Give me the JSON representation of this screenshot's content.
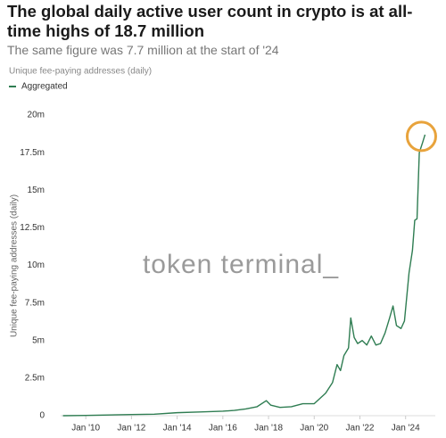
{
  "chart_data": {
    "type": "line",
    "title": "The global daily active user count in crypto is at all-time highs of 18.7 million",
    "subtitle": "The same figure was 7.7 million at the start of '24",
    "caption": "Unique fee-paying addresses (daily)",
    "y_label": "Unique fee-paying addresses (daily)",
    "watermark": "token terminal_",
    "legend": "top-left",
    "series": [
      {
        "name": "Aggregated",
        "color": "#2f7d52",
        "x": [
          2009.0,
          2010,
          2011,
          2012,
          2013,
          2014,
          2015,
          2016,
          2016.5,
          2017,
          2017.5,
          2017.9,
          2018.1,
          2018.5,
          2019,
          2019.5,
          2020,
          2020.5,
          2020.8,
          2021,
          2021.15,
          2021.3,
          2021.5,
          2021.6,
          2021.75,
          2021.9,
          2022.1,
          2022.3,
          2022.5,
          2022.7,
          2022.9,
          2023.1,
          2023.3,
          2023.45,
          2023.6,
          2023.8,
          2023.95,
          2024.15,
          2024.3,
          2024.4,
          2024.5,
          2024.6,
          2024.75,
          2024.85
        ],
        "values": [
          0,
          0.02,
          0.05,
          0.08,
          0.1,
          0.2,
          0.25,
          0.3,
          0.35,
          0.45,
          0.6,
          1.0,
          0.7,
          0.55,
          0.6,
          0.8,
          0.8,
          1.5,
          2.2,
          3.4,
          3.0,
          4.0,
          4.5,
          6.5,
          5.2,
          4.8,
          5.0,
          4.7,
          5.3,
          4.7,
          4.8,
          5.5,
          6.5,
          7.3,
          6.0,
          5.8,
          6.3,
          9.5,
          11.0,
          13.0,
          13.1,
          17.5,
          18.2,
          18.7
        ]
      }
    ],
    "xlim": [
      2008.9,
      2025.3
    ],
    "xticks": [
      {
        "value": 2010,
        "label": "Jan '10"
      },
      {
        "value": 2012,
        "label": "Jan '12"
      },
      {
        "value": 2014,
        "label": "Jan '14"
      },
      {
        "value": 2016,
        "label": "Jan '16"
      },
      {
        "value": 2018,
        "label": "Jan '18"
      },
      {
        "value": 2020,
        "label": "Jan '20"
      },
      {
        "value": 2022,
        "label": "Jan '22"
      },
      {
        "value": 2024,
        "label": "Jan '24"
      }
    ],
    "ylim": [
      0,
      20
    ],
    "yticks": [
      0,
      {
        "value": 2.5,
        "label": "2.5m"
      },
      {
        "value": 5,
        "label": "5m"
      },
      {
        "value": 7.5,
        "label": "7.5m"
      },
      {
        "value": 10,
        "label": "10m"
      },
      {
        "value": 12.5,
        "label": "12.5m"
      },
      {
        "value": 15,
        "label": "15m"
      },
      {
        "value": 17.5,
        "label": "17.5m"
      },
      {
        "value": 20,
        "label": "20m"
      }
    ],
    "grid": false
  }
}
